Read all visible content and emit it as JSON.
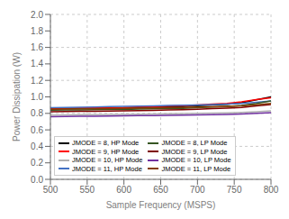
{
  "chart_data": {
    "type": "line",
    "xlabel": "Sample Frequency (MSPS)",
    "ylabel": "Power Dissipation (W)",
    "x": [
      500,
      520,
      540,
      560,
      580,
      600,
      620,
      640,
      660,
      680,
      700,
      720,
      740,
      760,
      780,
      800
    ],
    "series": [
      {
        "name": "JMODE = 8, HP Mode",
        "color": "#000000",
        "values": [
          0.855,
          0.857,
          0.858,
          0.862,
          0.862,
          0.863,
          0.868,
          0.873,
          0.878,
          0.883,
          0.893,
          0.902,
          0.91,
          0.93,
          0.965,
          1.0
        ]
      },
      {
        "name": "JMODE = 9, HP Mode",
        "color": "#ff0000",
        "values": [
          0.86,
          0.862,
          0.865,
          0.866,
          0.87,
          0.872,
          0.878,
          0.882,
          0.888,
          0.893,
          0.903,
          0.913,
          0.92,
          0.94,
          0.967,
          0.99
        ]
      },
      {
        "name": "JMODE = 10, HP Mode",
        "color": "#b0b0b0",
        "values": [
          0.78,
          0.782,
          0.783,
          0.785,
          0.786,
          0.788,
          0.79,
          0.792,
          0.795,
          0.797,
          0.8,
          0.803,
          0.806,
          0.812,
          0.82,
          0.83
        ]
      },
      {
        "name": "JMODE = 11, HP Mode",
        "color": "#4472c4",
        "values": [
          0.87,
          0.872,
          0.875,
          0.878,
          0.882,
          0.885,
          0.888,
          0.892,
          0.895,
          0.898,
          0.902,
          0.908,
          0.913,
          0.92,
          0.935,
          0.952
        ]
      },
      {
        "name": "JMODE = 8, LP Mode",
        "color": "#375623",
        "values": [
          0.84,
          0.841,
          0.842,
          0.845,
          0.846,
          0.848,
          0.852,
          0.855,
          0.859,
          0.862,
          0.869,
          0.876,
          0.882,
          0.895,
          0.92,
          0.95
        ]
      },
      {
        "name": "JMODE = 9, LP Mode",
        "color": "#7f0000",
        "values": [
          0.82,
          0.822,
          0.824,
          0.826,
          0.828,
          0.831,
          0.834,
          0.837,
          0.841,
          0.844,
          0.85,
          0.857,
          0.863,
          0.872,
          0.89,
          0.908
        ]
      },
      {
        "name": "JMODE = 10, LP Mode",
        "color": "#7030a0",
        "values": [
          0.76,
          0.762,
          0.764,
          0.766,
          0.768,
          0.77,
          0.772,
          0.774,
          0.777,
          0.779,
          0.782,
          0.785,
          0.788,
          0.793,
          0.8,
          0.808
        ]
      },
      {
        "name": "JMODE = 11, LP Mode",
        "color": "#833c00",
        "values": [
          0.85,
          0.852,
          0.854,
          0.856,
          0.858,
          0.86,
          0.863,
          0.866,
          0.869,
          0.872,
          0.876,
          0.881,
          0.886,
          0.892,
          0.905,
          0.92
        ]
      }
    ],
    "xlim": [
      500,
      800
    ],
    "ylim": [
      0,
      2
    ],
    "xticks": [
      500,
      550,
      600,
      650,
      700,
      750,
      800
    ],
    "yticks": [
      {
        "value": 0,
        "label": "0.0"
      },
      0.2,
      0.4,
      0.6,
      0.8,
      {
        "value": 1.0,
        "label": "1.0"
      },
      1.2,
      1.4,
      1.6,
      1.8,
      {
        "value": 2.0,
        "label": "2.0"
      }
    ],
    "grid": true,
    "legend": "lower left"
  }
}
